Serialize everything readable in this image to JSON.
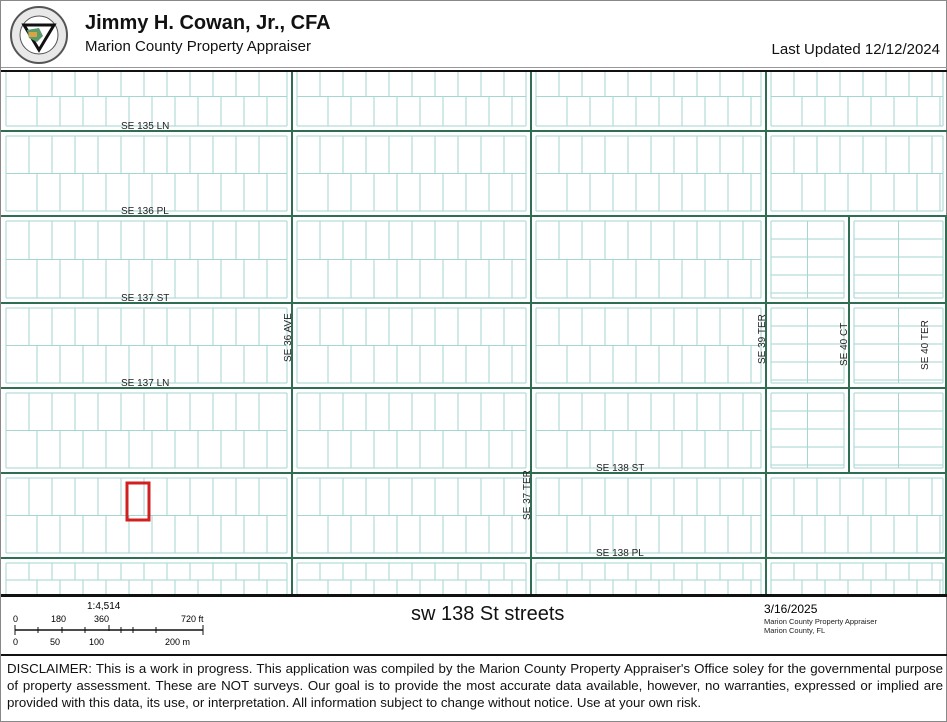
{
  "header": {
    "title": "Jimmy H. Cowan, Jr., CFA",
    "subtitle": "Marion County Property Appraiser",
    "last_updated": "Last Updated 12/12/2024",
    "logo_text": "PROPERTY APPRAISER MARION COUNTY, FLORIDA"
  },
  "map": {
    "colors": {
      "road": "#2f6e52",
      "parcel": "#a5d6cf",
      "highlight": "#d21f1f"
    },
    "streets_h": [
      "SE 135 LN",
      "SE 136 PL",
      "SE 137 ST",
      "SE 137 LN",
      "SE 138 ST",
      "SE 138 PL"
    ],
    "streets_v": [
      "SE 36 AVE",
      "SE 37 TER",
      "SE 39 TER",
      "SE 40 CT",
      "SE 40 TER"
    ]
  },
  "scale": {
    "ratio": "1:4,514",
    "ft_ticks": [
      "0",
      "180",
      "360",
      "720 ft"
    ],
    "m_ticks": [
      "0",
      "50",
      "100",
      "200 m"
    ]
  },
  "map_title": "sw 138 St streets",
  "print_date": "3/16/2025",
  "credits": [
    "Marion County Property Appraiser",
    "Marion County, FL"
  ],
  "disclaimer": "DISCLAIMER: This is a work in progress. This application was compiled by the Marion County Property Appraiser's Office soley for the governmental purpose of property assessment. These are NOT surveys. Our goal is to provide the most accurate data available, however, no warranties, expressed or implied are provided with this data, its use, or interpretation. All information subject to change without notice. Use at your own risk."
}
